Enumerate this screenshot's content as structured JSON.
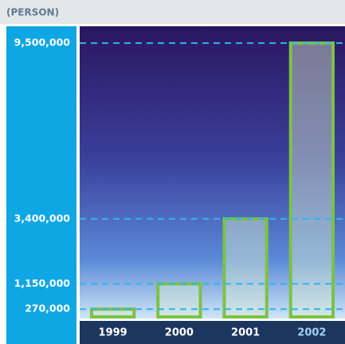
{
  "chart_data": {
    "type": "bar",
    "title": "(PERSON)",
    "categories": [
      "1999",
      "2000",
      "2001",
      "2002"
    ],
    "values": [
      270000,
      1150000,
      3400000,
      9500000
    ],
    "color": "#7dc242",
    "category_label_colors": [
      "#ffffff",
      "#ffffff",
      "#ffffff",
      "#a6d1f2"
    ],
    "ylim": [
      0,
      10000000
    ],
    "yticks": [
      {
        "value": 270000,
        "label": "270,000"
      },
      {
        "value": 1150000,
        "label": "1,150,000"
      },
      {
        "value": 3400000,
        "label": "3,400,000"
      },
      {
        "value": 9500000,
        "label": "9,500,000"
      }
    ],
    "grid": true
  }
}
